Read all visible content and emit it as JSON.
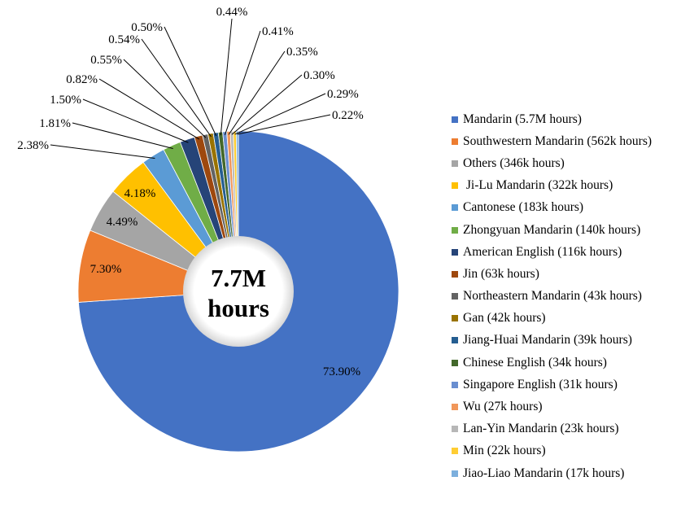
{
  "chart_data": {
    "type": "pie",
    "variant": "donut",
    "center_label": [
      "7.7M",
      "hours"
    ],
    "legend_position": "right",
    "slices": [
      {
        "name": "Mandarin (5.7M hours)",
        "value": 73.9,
        "label": "73.90%",
        "color": "#4472C4"
      },
      {
        "name": "Southwestern Mandarin (562k hours)",
        "value": 7.3,
        "label": "7.30%",
        "color": "#ED7D31"
      },
      {
        "name": "Others (346k hours)",
        "value": 4.49,
        "label": "4.49%",
        "color": "#A5A5A5"
      },
      {
        "name": " Ji-Lu Mandarin (322k hours)",
        "value": 4.18,
        "label": "4.18%",
        "color": "#FFC000"
      },
      {
        "name": "Cantonese (183k hours)",
        "value": 2.38,
        "label": "2.38%",
        "color": "#5B9BD5"
      },
      {
        "name": "Zhongyuan Mandarin (140k hours)",
        "value": 1.81,
        "label": "1.81%",
        "color": "#70AD47"
      },
      {
        "name": "American English (116k hours)",
        "value": 1.5,
        "label": "1.50%",
        "color": "#264478"
      },
      {
        "name": "Jin (63k hours)",
        "value": 0.82,
        "label": "0.82%",
        "color": "#9E480E"
      },
      {
        "name": "Northeastern Mandarin (43k hours)",
        "value": 0.55,
        "label": "0.55%",
        "color": "#636363"
      },
      {
        "name": "Gan (42k hours)",
        "value": 0.54,
        "label": "0.54%",
        "color": "#997300"
      },
      {
        "name": "Jiang-Huai Mandarin (39k hours)",
        "value": 0.5,
        "label": "0.50%",
        "color": "#255E91"
      },
      {
        "name": "Chinese English (34k hours)",
        "value": 0.44,
        "label": "0.44%",
        "color": "#43682B"
      },
      {
        "name": "Singapore English (31k hours)",
        "value": 0.41,
        "label": "0.41%",
        "color": "#698ED0"
      },
      {
        "name": "Wu (27k hours)",
        "value": 0.35,
        "label": "0.35%",
        "color": "#F1975A"
      },
      {
        "name": "Lan-Yin Mandarin (23k hours)",
        "value": 0.3,
        "label": "0.30%",
        "color": "#B7B7B7"
      },
      {
        "name": "Min (22k hours)",
        "value": 0.29,
        "label": "0.29%",
        "color": "#FFCD33"
      },
      {
        "name": "Jiao-Liao Mandarin (17k hours)",
        "value": 0.22,
        "label": "0.22%",
        "color": "#7CAFDD"
      }
    ]
  }
}
